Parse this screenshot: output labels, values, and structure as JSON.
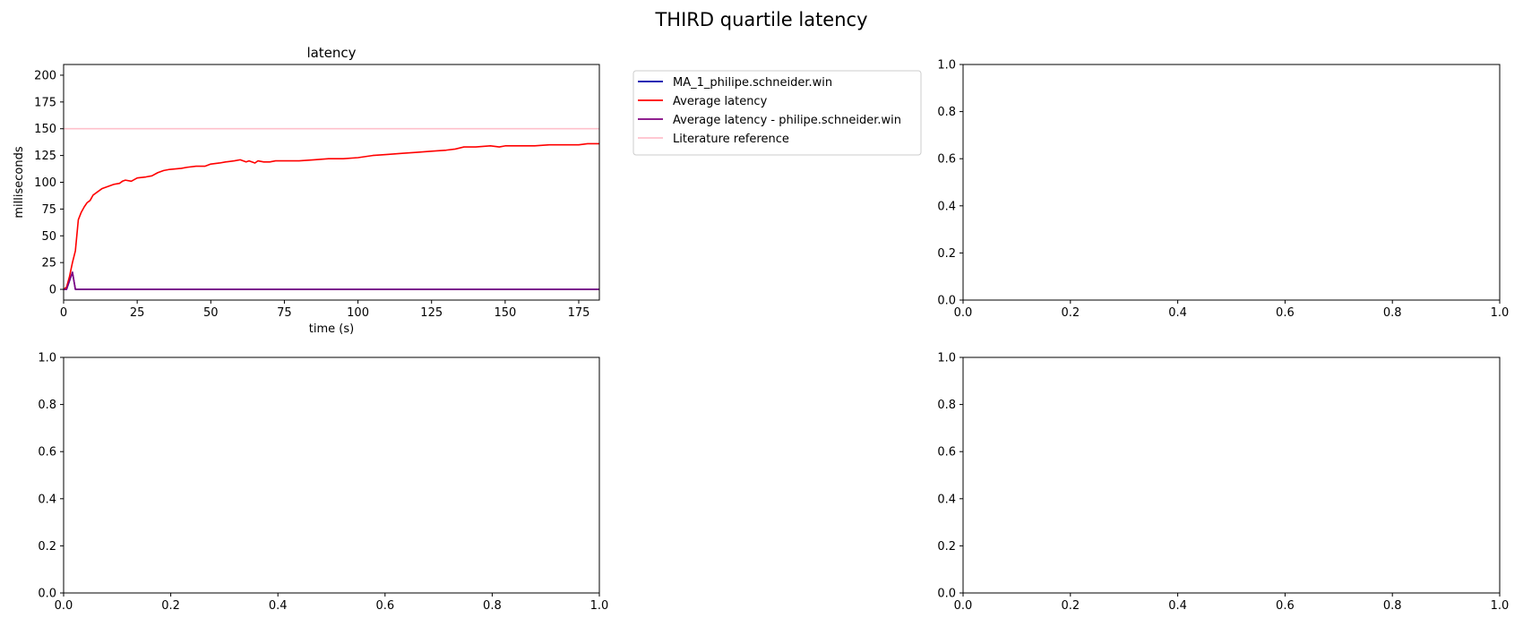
{
  "figure": {
    "title": "THIRD quartile latency"
  },
  "chart_data": [
    {
      "type": "line",
      "title": "latency",
      "xlabel": "time (s)",
      "ylabel": "milliseconds",
      "xlim": [
        0,
        182
      ],
      "ylim": [
        -10,
        210
      ],
      "xticks": [
        0,
        25,
        50,
        75,
        100,
        125,
        150,
        175
      ],
      "yticks": [
        0,
        25,
        50,
        75,
        100,
        125,
        150,
        175,
        200
      ],
      "grid": false,
      "legend": {
        "placement": "outside-right",
        "entries": [
          {
            "name": "MA_1_philipe.schneider.win",
            "color": "#0000aa"
          },
          {
            "name": "Average latency",
            "color": "#ff0000"
          },
          {
            "name": "Average latency - philipe.schneider.win",
            "color": "#800080"
          },
          {
            "name": "Literature reference",
            "color": "#ffc0cb"
          }
        ]
      },
      "series": [
        {
          "name": "MA_1_philipe.schneider.win",
          "color": "#0000aa",
          "points": [
            [
              0,
              0
            ],
            [
              1,
              0
            ],
            [
              2,
              8
            ],
            [
              3,
              16
            ],
            [
              4,
              0
            ],
            [
              182,
              0
            ]
          ]
        },
        {
          "name": "Average latency",
          "color": "#ff0000",
          "points": [
            [
              0,
              0
            ],
            [
              1,
              2
            ],
            [
              2,
              12
            ],
            [
              3,
              25
            ],
            [
              4,
              36
            ],
            [
              5,
              65
            ],
            [
              6,
              72
            ],
            [
              7,
              77
            ],
            [
              8,
              81
            ],
            [
              9,
              83
            ],
            [
              10,
              88
            ],
            [
              11,
              90
            ],
            [
              12,
              92
            ],
            [
              13,
              94
            ],
            [
              15,
              96
            ],
            [
              17,
              98
            ],
            [
              19,
              99
            ],
            [
              20,
              101
            ],
            [
              21,
              102
            ],
            [
              23,
              101
            ],
            [
              25,
              104
            ],
            [
              28,
              105
            ],
            [
              30,
              106
            ],
            [
              32,
              109
            ],
            [
              34,
              111
            ],
            [
              36,
              112
            ],
            [
              40,
              113
            ],
            [
              42,
              114
            ],
            [
              45,
              115
            ],
            [
              48,
              115
            ],
            [
              50,
              117
            ],
            [
              53,
              118
            ],
            [
              55,
              119
            ],
            [
              58,
              120
            ],
            [
              60,
              121
            ],
            [
              62,
              119
            ],
            [
              63,
              120
            ],
            [
              65,
              118
            ],
            [
              66,
              120
            ],
            [
              68,
              119
            ],
            [
              70,
              119
            ],
            [
              72,
              120
            ],
            [
              75,
              120
            ],
            [
              80,
              120
            ],
            [
              85,
              121
            ],
            [
              90,
              122
            ],
            [
              95,
              122
            ],
            [
              100,
              123
            ],
            [
              105,
              125
            ],
            [
              110,
              126
            ],
            [
              115,
              127
            ],
            [
              120,
              128
            ],
            [
              125,
              129
            ],
            [
              130,
              130
            ],
            [
              133,
              131
            ],
            [
              136,
              133
            ],
            [
              140,
              133
            ],
            [
              145,
              134
            ],
            [
              148,
              133
            ],
            [
              150,
              134
            ],
            [
              155,
              134
            ],
            [
              160,
              134
            ],
            [
              165,
              135
            ],
            [
              170,
              135
            ],
            [
              175,
              135
            ],
            [
              178,
              136
            ],
            [
              182,
              136
            ]
          ]
        },
        {
          "name": "Average latency - philipe.schneider.win",
          "color": "#800080",
          "points": [
            [
              0,
              0
            ],
            [
              1,
              0
            ],
            [
              2,
              8
            ],
            [
              3,
              16
            ],
            [
              4,
              0
            ],
            [
              182,
              0
            ]
          ]
        },
        {
          "name": "Literature reference",
          "color": "#ffc0cb",
          "points": [
            [
              0,
              150
            ],
            [
              182,
              150
            ]
          ]
        }
      ]
    },
    {
      "type": "line",
      "title": "",
      "xlim": [
        0,
        1
      ],
      "ylim": [
        0,
        1
      ],
      "xticks": [
        0.0,
        0.2,
        0.4,
        0.6,
        0.8,
        1.0
      ],
      "yticks": [
        0.0,
        0.2,
        0.4,
        0.6,
        0.8,
        1.0
      ],
      "series": []
    },
    {
      "type": "line",
      "title": "",
      "xlim": [
        0,
        1
      ],
      "ylim": [
        0,
        1
      ],
      "xticks": [
        0.0,
        0.2,
        0.4,
        0.6,
        0.8,
        1.0
      ],
      "yticks": [
        0.0,
        0.2,
        0.4,
        0.6,
        0.8,
        1.0
      ],
      "series": []
    },
    {
      "type": "line",
      "title": "",
      "xlim": [
        0,
        1
      ],
      "ylim": [
        0,
        1
      ],
      "xticks": [
        0.0,
        0.2,
        0.4,
        0.6,
        0.8,
        1.0
      ],
      "yticks": [
        0.0,
        0.2,
        0.4,
        0.6,
        0.8,
        1.0
      ],
      "series": []
    }
  ]
}
